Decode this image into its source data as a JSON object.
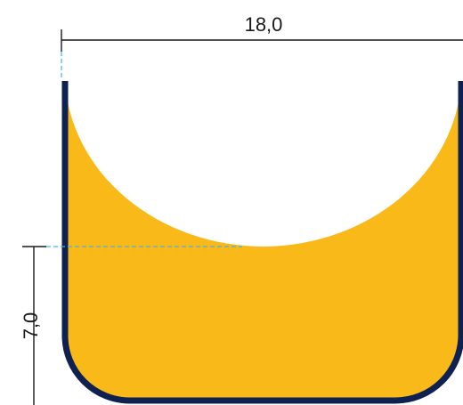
{
  "dimensions": {
    "width_label": "18,0",
    "height_label": "7,0"
  },
  "colors": {
    "fill": "#F9B918",
    "outline": "#0F2150",
    "dimension_line": "#1a1a1a",
    "guide_line": "#4FB3D9"
  }
}
